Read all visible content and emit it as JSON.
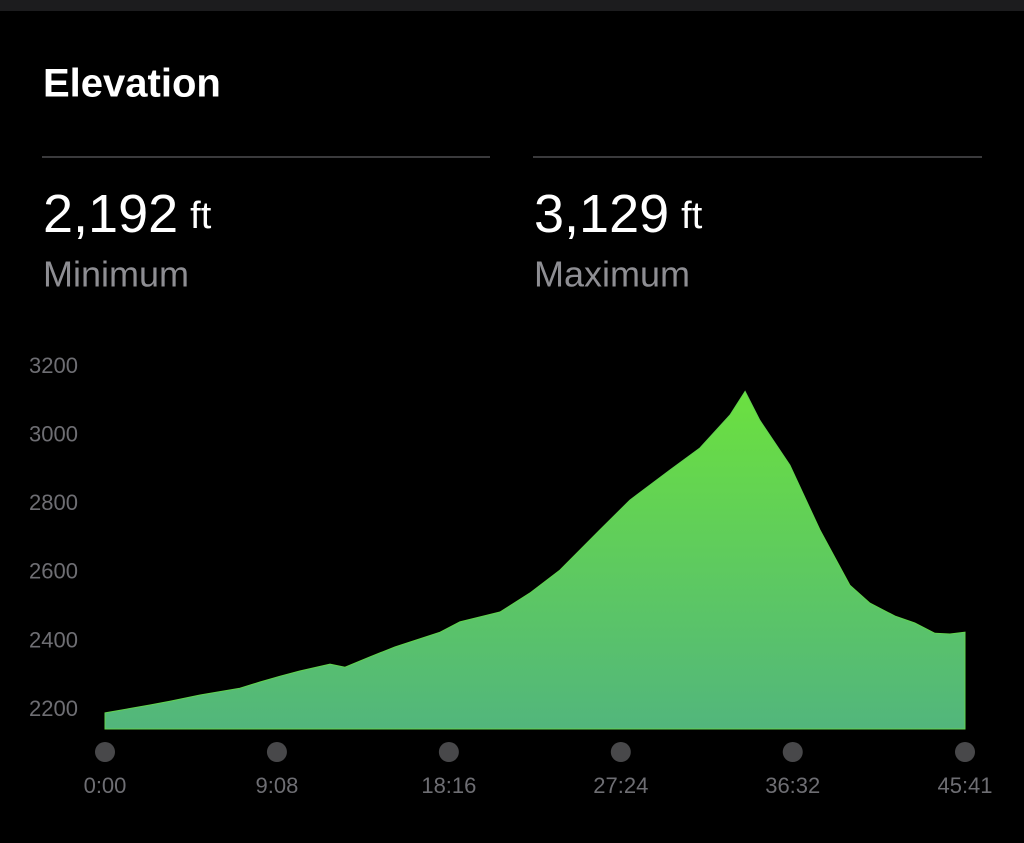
{
  "header": {
    "title": "Elevation"
  },
  "stats": [
    {
      "value": "2,192",
      "unit": "ft",
      "label": "Minimum"
    },
    {
      "value": "3,129",
      "unit": "ft",
      "label": "Maximum"
    }
  ],
  "chart_data": {
    "type": "area",
    "color": "#62d34f",
    "x": [
      0,
      143,
      207,
      303,
      430,
      494,
      558,
      621,
      717,
      765,
      844,
      924,
      1068,
      1131,
      1259,
      1354,
      1450,
      1577,
      1673,
      1801,
      1896,
      1992,
      2040,
      2087,
      2183,
      2279,
      2374,
      2438,
      2518,
      2581,
      2645,
      2693,
      2741
    ],
    "values": [
      2192,
      2215,
      2226,
      2244,
      2264,
      2282,
      2299,
      2314,
      2334,
      2325,
      2355,
      2384,
      2427,
      2457,
      2486,
      2541,
      2608,
      2725,
      2812,
      2900,
      2964,
      3060,
      3129,
      3045,
      2914,
      2725,
      2564,
      2512,
      2474,
      2454,
      2424,
      2422,
      2427
    ],
    "xlim": [
      0,
      2741
    ],
    "ylim": [
      2145,
      3200
    ],
    "yticks": [
      2200,
      2400,
      2600,
      2800,
      3000,
      3200
    ],
    "xticks": [
      {
        "value": 0,
        "label": "0:00"
      },
      {
        "value": 548,
        "label": "9:08"
      },
      {
        "value": 1096,
        "label": "18:16"
      },
      {
        "value": 1644,
        "label": "27:24"
      },
      {
        "value": 2192,
        "label": "36:32"
      },
      {
        "value": 2741,
        "label": "45:41"
      }
    ]
  }
}
